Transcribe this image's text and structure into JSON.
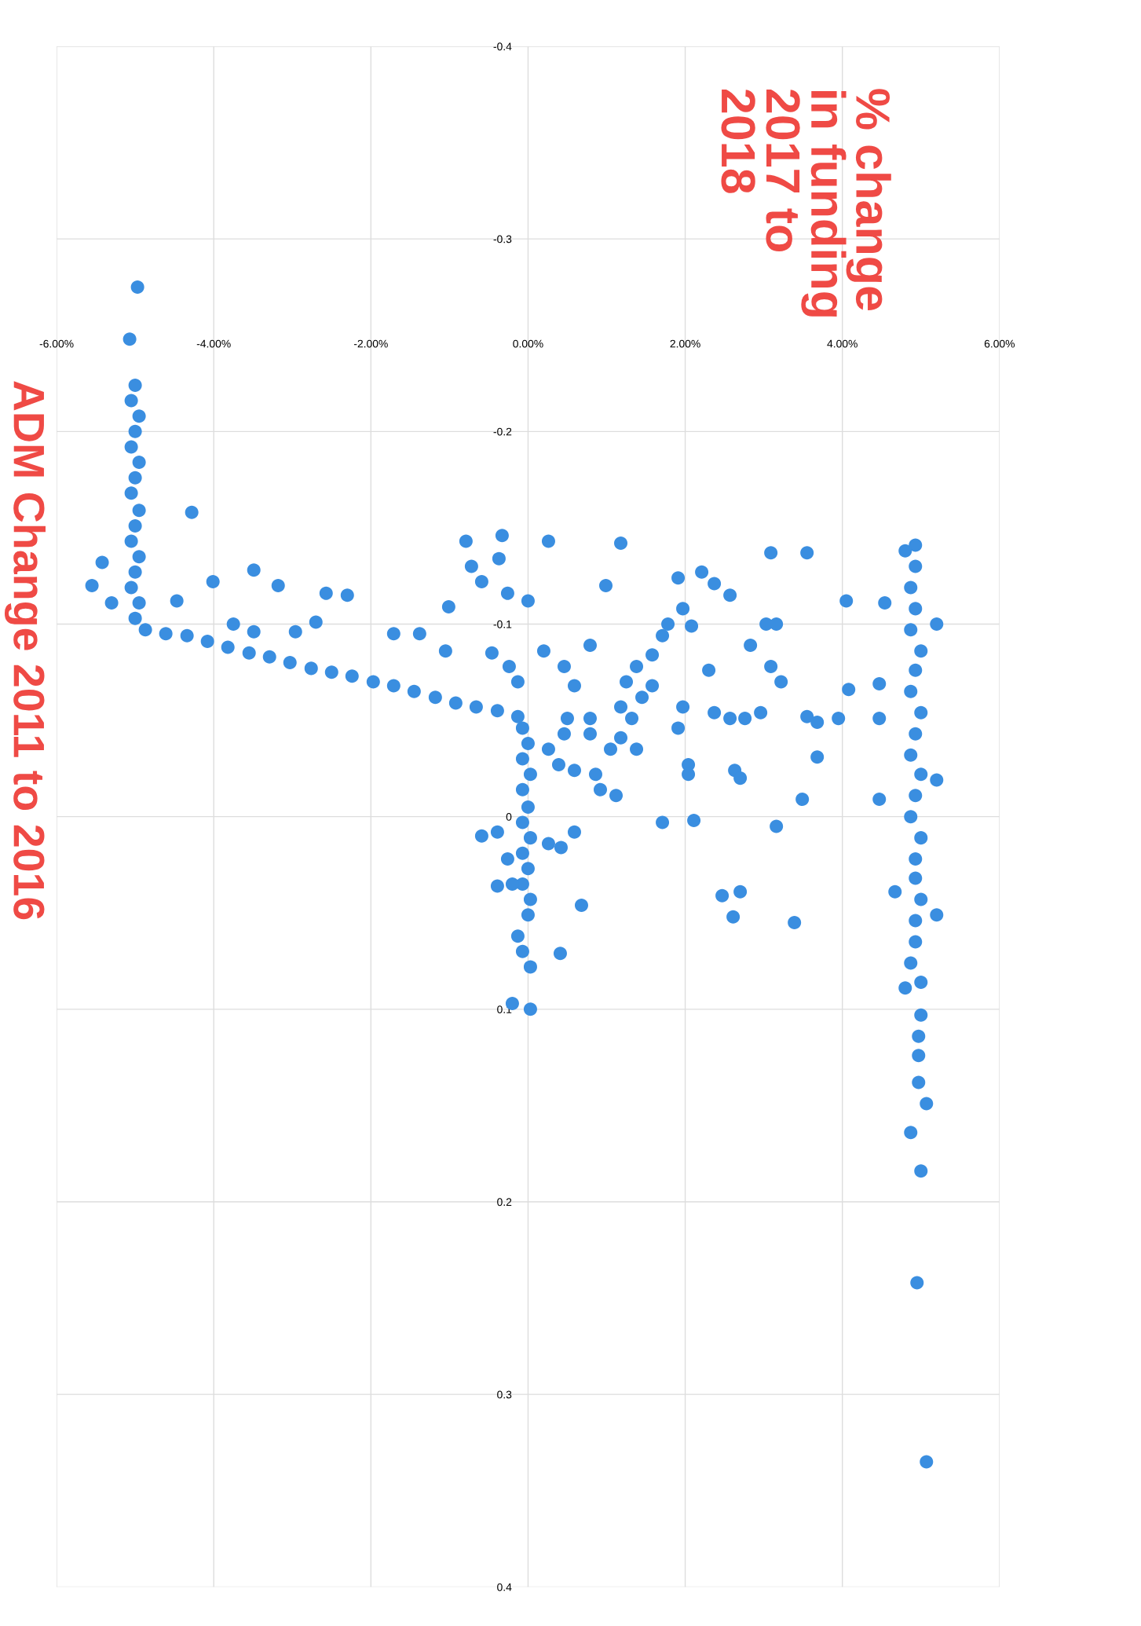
{
  "chart_data": {
    "type": "scatter",
    "title": "% change\nin funding\n2017 to\n2018",
    "ylabel": "ADM Change 2011 to 2016",
    "xlim": [
      -6,
      6
    ],
    "ylim": [
      0.4,
      -0.4
    ],
    "xticks": [
      {
        "value": -6,
        "label": "-6.00%"
      },
      {
        "value": -4,
        "label": "-4.00%"
      },
      {
        "value": -2,
        "label": "-2.00%"
      },
      {
        "value": 0,
        "label": "0.00%"
      },
      {
        "value": 2,
        "label": "2.00%"
      },
      {
        "value": 4,
        "label": "4.00%"
      },
      {
        "value": 6,
        "label": "6.00%"
      }
    ],
    "yticks": [
      -0.4,
      -0.3,
      -0.2,
      -0.1,
      0,
      0.1,
      0.2,
      0.3,
      0.4
    ],
    "grid": true,
    "marker": "circle",
    "series": [
      {
        "color": "#3a8ee0",
        "x": [
          -4.97,
          -5.07,
          -5.0,
          -5.05,
          -4.95,
          -5.0,
          -5.05,
          -4.95,
          -5.0,
          -5.05,
          -4.95,
          -5.0,
          -5.05,
          -4.95,
          -5.0,
          -5.05,
          -4.95,
          -5.0,
          -4.28,
          -5.42,
          -5.55,
          -5.3,
          -4.87,
          -4.61,
          -4.34,
          -4.08,
          -3.82,
          -3.55,
          -3.29,
          -3.03,
          -2.76,
          -2.5,
          -2.24,
          -1.97,
          -1.71,
          -1.45,
          -1.18,
          -0.92,
          -0.66,
          -0.39,
          -0.13,
          -4.01,
          -3.49,
          -3.18,
          -4.47,
          -3.75,
          -3.49,
          -2.96,
          -2.57,
          -2.3,
          -2.7,
          -1.71,
          -1.38,
          -1.05,
          -1.01,
          -0.79,
          -0.72,
          -0.59,
          -0.33,
          -0.37,
          -0.26,
          0.0,
          -0.46,
          -0.24,
          -0.13,
          0.26,
          1.18,
          0.99,
          0.2,
          0.79,
          0.46,
          0.59,
          0.5,
          0.46,
          0.26,
          0.79,
          0.79,
          1.05,
          1.25,
          1.38,
          1.18,
          1.32,
          1.45,
          1.58,
          1.18,
          1.38,
          0.86,
          0.59,
          0.39,
          0.92,
          1.12,
          1.71,
          2.11,
          1.91,
          2.21,
          2.37,
          2.57,
          1.97,
          1.78,
          1.71,
          2.08,
          1.58,
          2.3,
          1.97,
          1.91,
          2.04,
          2.04,
          2.37,
          2.57,
          2.76,
          2.96,
          2.63,
          2.7,
          3.03,
          3.16,
          3.09,
          3.55,
          2.83,
          3.09,
          3.22,
          3.55,
          3.68,
          3.95,
          4.05,
          4.08,
          3.68,
          3.49,
          3.16,
          2.47,
          2.7,
          2.61,
          3.39,
          -0.07,
          0.0,
          -0.07,
          0.03,
          -0.07,
          0.0,
          -0.07,
          0.03,
          -0.07,
          0.0,
          -0.07,
          0.03,
          0.0,
          -0.59,
          -0.39,
          -0.2,
          -0.13,
          -0.07,
          0.03,
          -0.2,
          0.03,
          0.26,
          0.42,
          0.59,
          0.68,
          0.41,
          -0.39,
          -0.26,
          4.93,
          4.93,
          4.87,
          4.93,
          4.87,
          5.0,
          4.93,
          4.87,
          5.0,
          4.93,
          4.87,
          5.0,
          4.93,
          4.87,
          5.0,
          4.93,
          4.93,
          5.0,
          4.93,
          4.93,
          4.54,
          5.2,
          4.47,
          4.47,
          4.47,
          4.67,
          5.2,
          5.2,
          4.8,
          4.87,
          5.0,
          4.8,
          5.0,
          4.97,
          4.97,
          4.97,
          5.07,
          4.87,
          5.0,
          4.95,
          5.07
        ],
        "values": [
          -0.275,
          -0.248,
          -0.224,
          -0.216,
          -0.208,
          -0.2,
          -0.192,
          -0.184,
          -0.176,
          -0.168,
          -0.159,
          -0.151,
          -0.143,
          -0.135,
          -0.127,
          -0.119,
          -0.111,
          -0.103,
          -0.158,
          -0.132,
          -0.12,
          -0.111,
          -0.097,
          -0.095,
          -0.094,
          -0.091,
          -0.088,
          -0.085,
          -0.083,
          -0.08,
          -0.077,
          -0.075,
          -0.073,
          -0.07,
          -0.068,
          -0.065,
          -0.062,
          -0.059,
          -0.057,
          -0.055,
          -0.052,
          -0.122,
          -0.128,
          -0.12,
          -0.112,
          -0.1,
          -0.096,
          -0.096,
          -0.116,
          -0.115,
          -0.101,
          -0.095,
          -0.095,
          -0.086,
          -0.109,
          -0.143,
          -0.13,
          -0.122,
          -0.146,
          -0.134,
          -0.116,
          -0.112,
          -0.085,
          -0.078,
          -0.07,
          -0.143,
          -0.142,
          -0.12,
          -0.086,
          -0.089,
          -0.078,
          -0.068,
          -0.051,
          -0.043,
          -0.035,
          -0.051,
          -0.043,
          -0.035,
          -0.07,
          -0.078,
          -0.057,
          -0.051,
          -0.062,
          -0.068,
          -0.041,
          -0.035,
          -0.022,
          -0.024,
          -0.027,
          -0.014,
          -0.011,
          0.003,
          0.002,
          -0.124,
          -0.127,
          -0.121,
          -0.115,
          -0.108,
          -0.1,
          -0.094,
          -0.099,
          -0.084,
          -0.076,
          -0.057,
          -0.046,
          -0.027,
          -0.022,
          -0.054,
          -0.051,
          -0.051,
          -0.054,
          -0.024,
          -0.02,
          -0.1,
          -0.1,
          -0.137,
          -0.137,
          -0.089,
          -0.078,
          -0.07,
          -0.052,
          -0.049,
          -0.051,
          -0.112,
          -0.066,
          -0.031,
          -0.009,
          0.005,
          0.041,
          0.039,
          0.052,
          0.055,
          -0.046,
          -0.038,
          -0.03,
          -0.022,
          -0.014,
          -0.005,
          0.003,
          0.011,
          0.019,
          0.027,
          0.035,
          0.043,
          0.051,
          0.01,
          0.036,
          0.035,
          0.062,
          0.07,
          0.078,
          0.097,
          0.1,
          0.014,
          0.016,
          0.008,
          0.046,
          0.071,
          0.008,
          0.022,
          -0.141,
          -0.13,
          -0.119,
          -0.108,
          -0.097,
          -0.086,
          -0.076,
          -0.065,
          -0.054,
          -0.043,
          -0.032,
          -0.022,
          -0.011,
          0.0,
          0.011,
          0.022,
          0.032,
          0.043,
          0.054,
          0.065,
          -0.111,
          -0.1,
          -0.069,
          -0.051,
          -0.009,
          0.039,
          -0.019,
          0.051,
          -0.138,
          0.076,
          0.086,
          0.089,
          0.103,
          0.114,
          0.124,
          0.138,
          0.149,
          0.164,
          0.184,
          0.242,
          0.335
        ]
      }
    ]
  }
}
